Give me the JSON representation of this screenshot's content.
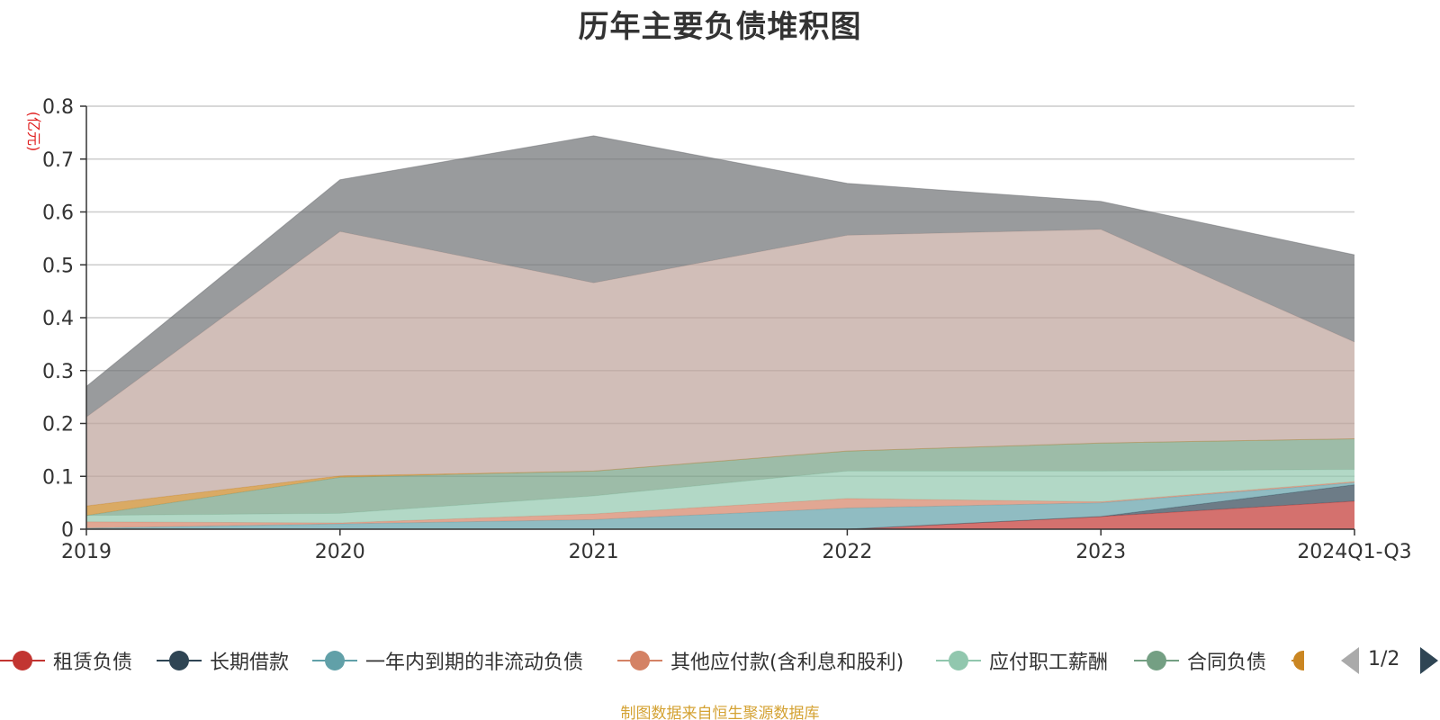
{
  "chart_data": {
    "type": "area",
    "stacked": true,
    "title": "历年主要负债堆积图",
    "unit_label": "(亿元)",
    "x": [
      "2019",
      "2020",
      "2021",
      "2022",
      "2023",
      "2024Q1-Q3"
    ],
    "ylim": [
      0,
      0.8
    ],
    "yticks": [
      "0",
      "0.1",
      "0.2",
      "0.3",
      "0.4",
      "0.5",
      "0.6",
      "0.7",
      "0.8"
    ],
    "ytick_values": [
      0,
      0.1,
      0.2,
      0.3,
      0.4,
      0.5,
      0.6,
      0.7,
      0.8
    ],
    "grid": true,
    "legend_position": "bottom",
    "series": [
      {
        "name": "租赁负债",
        "color": "#c23531",
        "values": [
          0,
          0,
          0,
          0,
          0.024,
          0.053
        ]
      },
      {
        "name": "长期借款",
        "color": "#2f4554",
        "values": [
          0,
          0,
          0,
          0,
          0,
          0.031
        ]
      },
      {
        "name": "一年内到期的非流动负债",
        "color": "#61a0a8",
        "values": [
          0.002,
          0.01,
          0.018,
          0.04,
          0.026,
          0.004
        ]
      },
      {
        "name": "其他应付款(含利息和股利)",
        "color": "#d48265",
        "values": [
          0.012,
          0.002,
          0.011,
          0.018,
          0.002,
          0.002
        ]
      },
      {
        "name": "应付职工薪酬",
        "color": "#91c7ae",
        "values": [
          0.012,
          0.018,
          0.034,
          0.052,
          0.058,
          0.023
        ]
      },
      {
        "name": "合同负债",
        "color": "#749f83",
        "values": [
          0,
          0.068,
          0.047,
          0.038,
          0.053,
          0.058
        ]
      },
      {
        "name": "",
        "color": "#ca8622",
        "values": [
          0.018,
          0.003,
          0,
          0,
          0,
          0
        ]
      },
      {
        "name": "",
        "color": "#bda29a",
        "values": [
          0.168,
          0.462,
          0.356,
          0.408,
          0.404,
          0.183
        ]
      },
      {
        "name": "",
        "color": "#6e7074",
        "values": [
          0.058,
          0.098,
          0.278,
          0.098,
          0.053,
          0.165
        ]
      }
    ]
  },
  "legend": {
    "page_indicator": "1/2"
  },
  "source_note": "制图数据来自恒生聚源数据库"
}
